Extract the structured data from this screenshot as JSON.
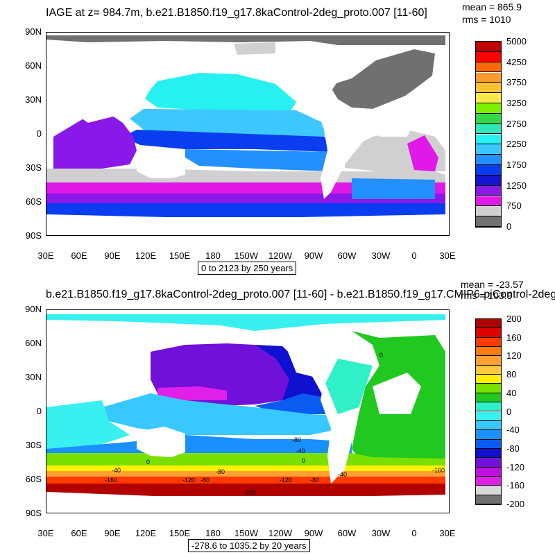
{
  "panel1": {
    "title": "IAGE at z= 984.7m, b.e21.B1850.f19_g17.8kaControl-2deg_proto.007 [11-60]",
    "mean_label": "mean = 865.9",
    "rms_label": "rms = 1010",
    "range_label": "0 to 2123 by 250 years",
    "lat_labels": [
      "90N",
      "60N",
      "30N",
      "0",
      "30S",
      "60S",
      "90S"
    ],
    "lon_labels": [
      "30E",
      "60E",
      "90E",
      "120E",
      "150E",
      "180",
      "150W",
      "120W",
      "90W",
      "60W",
      "30W",
      "0",
      "30E"
    ],
    "colorbar": {
      "colors": [
        "#c00000",
        "#ff0000",
        "#ff6a00",
        "#ff9a2e",
        "#ffc230",
        "#ffe84a",
        "#7cf000",
        "#34d84a",
        "#2ee8b8",
        "#26f0f0",
        "#3cc8ff",
        "#2290ff",
        "#0a3cf0",
        "#1414d0",
        "#8a18e8",
        "#e018e8",
        "#d0d0d0",
        "#707070"
      ],
      "labels": [
        "5000",
        "4250",
        "3750",
        "3250",
        "2750",
        "2250",
        "1750",
        "1250",
        "750",
        "0"
      ]
    }
  },
  "panel2": {
    "title": "b.e21.B1850.f19_g17.8kaControl-2deg_proto.007 [11-60] - b.e21.B1850.f19_g17.CMIP6-piControl-2deg",
    "mean_label": "mean = -23.57",
    "rms_label": "rms = 103.9",
    "range_label": "-278.6 to 1035.2 by 20 years",
    "lat_labels": [
      "90N",
      "60N",
      "30N",
      "0",
      "30S",
      "60S",
      "90S"
    ],
    "lon_labels": [
      "30E",
      "60E",
      "90E",
      "120E",
      "150E",
      "180",
      "150W",
      "120W",
      "90W",
      "60W",
      "30W",
      "0",
      "30E"
    ],
    "contour_labels": [
      "0",
      "-80",
      "-40",
      "0",
      "-40",
      "0",
      "-120",
      "-80",
      "-200",
      "-120",
      "-40",
      "-160",
      "-160",
      "-80",
      "-80"
    ],
    "colorbar": {
      "colors": [
        "#b00000",
        "#e00000",
        "#ff3a00",
        "#ff7a10",
        "#ffa030",
        "#ffc840",
        "#fff000",
        "#7ae000",
        "#20c820",
        "#30f0c8",
        "#38f0f0",
        "#38c8ff",
        "#1a90ff",
        "#0a5cf0",
        "#1010d0",
        "#7010d8",
        "#c010e0",
        "#e020e8",
        "#d8d8d8",
        "#707070"
      ],
      "labels": [
        "200",
        "160",
        "120",
        "80",
        "40",
        "0",
        "-40",
        "-80",
        "-120",
        "-160",
        "-200"
      ]
    }
  }
}
